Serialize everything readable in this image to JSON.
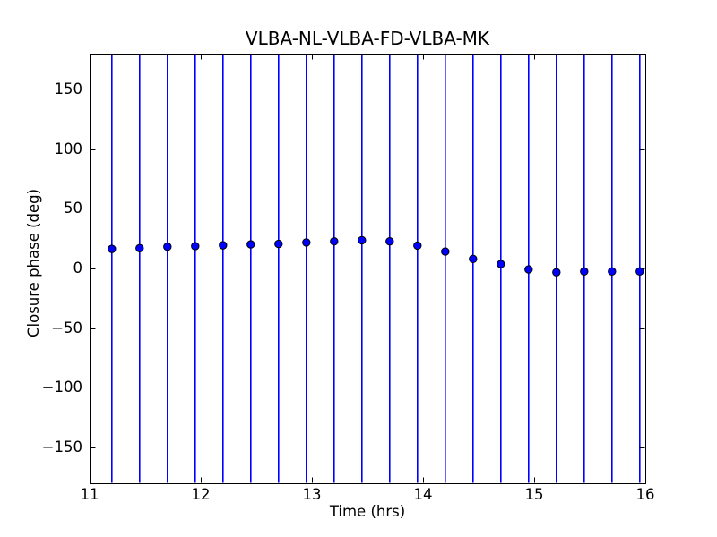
{
  "figure": {
    "background_color": "#ffffff",
    "plot_background_color": "#ffffff",
    "spine_color": "#000000"
  },
  "chart_data": {
    "type": "scatter",
    "title": "VLBA-NL-VLBA-FD-VLBA-MK",
    "xlabel": "Time (hrs)",
    "ylabel": "Closure phase (deg)",
    "xlim": [
      11,
      16
    ],
    "ylim": [
      -180,
      180
    ],
    "x_ticks": [
      11,
      12,
      13,
      14,
      15,
      16
    ],
    "x_tick_labels": [
      "11",
      "12",
      "13",
      "14",
      "15",
      "16"
    ],
    "y_ticks": [
      -150,
      -100,
      -50,
      0,
      50,
      100,
      150
    ],
    "y_tick_labels": [
      "−150",
      "−100",
      "−50",
      "0",
      "50",
      "100",
      "150"
    ],
    "grid": false,
    "legend": null,
    "tick_direction": "in",
    "series": [
      {
        "name": "closure phase",
        "marker": "circle",
        "marker_color": "#0000ff",
        "marker_edge_color": "#000000",
        "errorbar_color": "#0000ff",
        "errorbar_full_span": true,
        "errorbar_note": "vertical error bars exceed y-range and are clipped at plot top/bottom",
        "x": [
          11.2,
          11.45,
          11.7,
          11.95,
          12.2,
          12.45,
          12.7,
          12.95,
          13.2,
          13.45,
          13.7,
          13.95,
          14.2,
          14.45,
          14.7,
          14.95,
          15.2,
          15.45,
          15.7,
          15.95
        ],
        "y": [
          16.4,
          17.0,
          18.2,
          18.7,
          19.4,
          20.2,
          20.6,
          21.8,
          22.7,
          23.7,
          22.7,
          19.2,
          14.2,
          8.0,
          3.7,
          -0.8,
          -3.2,
          -2.5,
          -2.5,
          -2.5
        ]
      }
    ]
  }
}
